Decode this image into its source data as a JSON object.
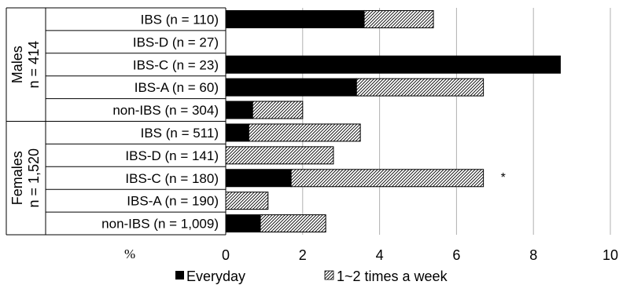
{
  "chart_data": {
    "type": "bar",
    "orientation": "horizontal",
    "stacked": true,
    "groups": [
      {
        "label_line1": "Males",
        "label_line2": "n = 414",
        "start": 0,
        "end": 4
      },
      {
        "label_line1": "Females",
        "label_line2": "n = 1,520",
        "start": 5,
        "end": 9
      }
    ],
    "categories": [
      "IBS (n = 110)",
      "IBS-D (n = 27)",
      "IBS-C (n = 23)",
      "IBS-A (n = 60)",
      "non-IBS (n = 304)",
      "IBS (n = 511)",
      "IBS-D (n = 141)",
      "IBS-C (n = 180)",
      "IBS-A (n = 190)",
      "non-IBS (n = 1,009)"
    ],
    "series": [
      {
        "name": "Everyday",
        "values": [
          3.6,
          0,
          8.7,
          3.4,
          0.7,
          0.6,
          0,
          1.7,
          0,
          0.9
        ],
        "color": "#000000",
        "pattern": "solid"
      },
      {
        "name": "1~2 times a week",
        "values": [
          1.8,
          0,
          0,
          3.3,
          1.3,
          2.9,
          2.8,
          5.0,
          1.1,
          1.7
        ],
        "color": "#ffffff",
        "pattern": "hatched"
      }
    ],
    "annotations": [
      {
        "category_index": 7,
        "text": "*"
      }
    ],
    "xlabel": "%",
    "xlim": [
      0,
      10
    ],
    "xticks": [
      "0",
      "2",
      "4",
      "6",
      "8",
      "10"
    ],
    "grid": true,
    "legend_position": "bottom"
  }
}
